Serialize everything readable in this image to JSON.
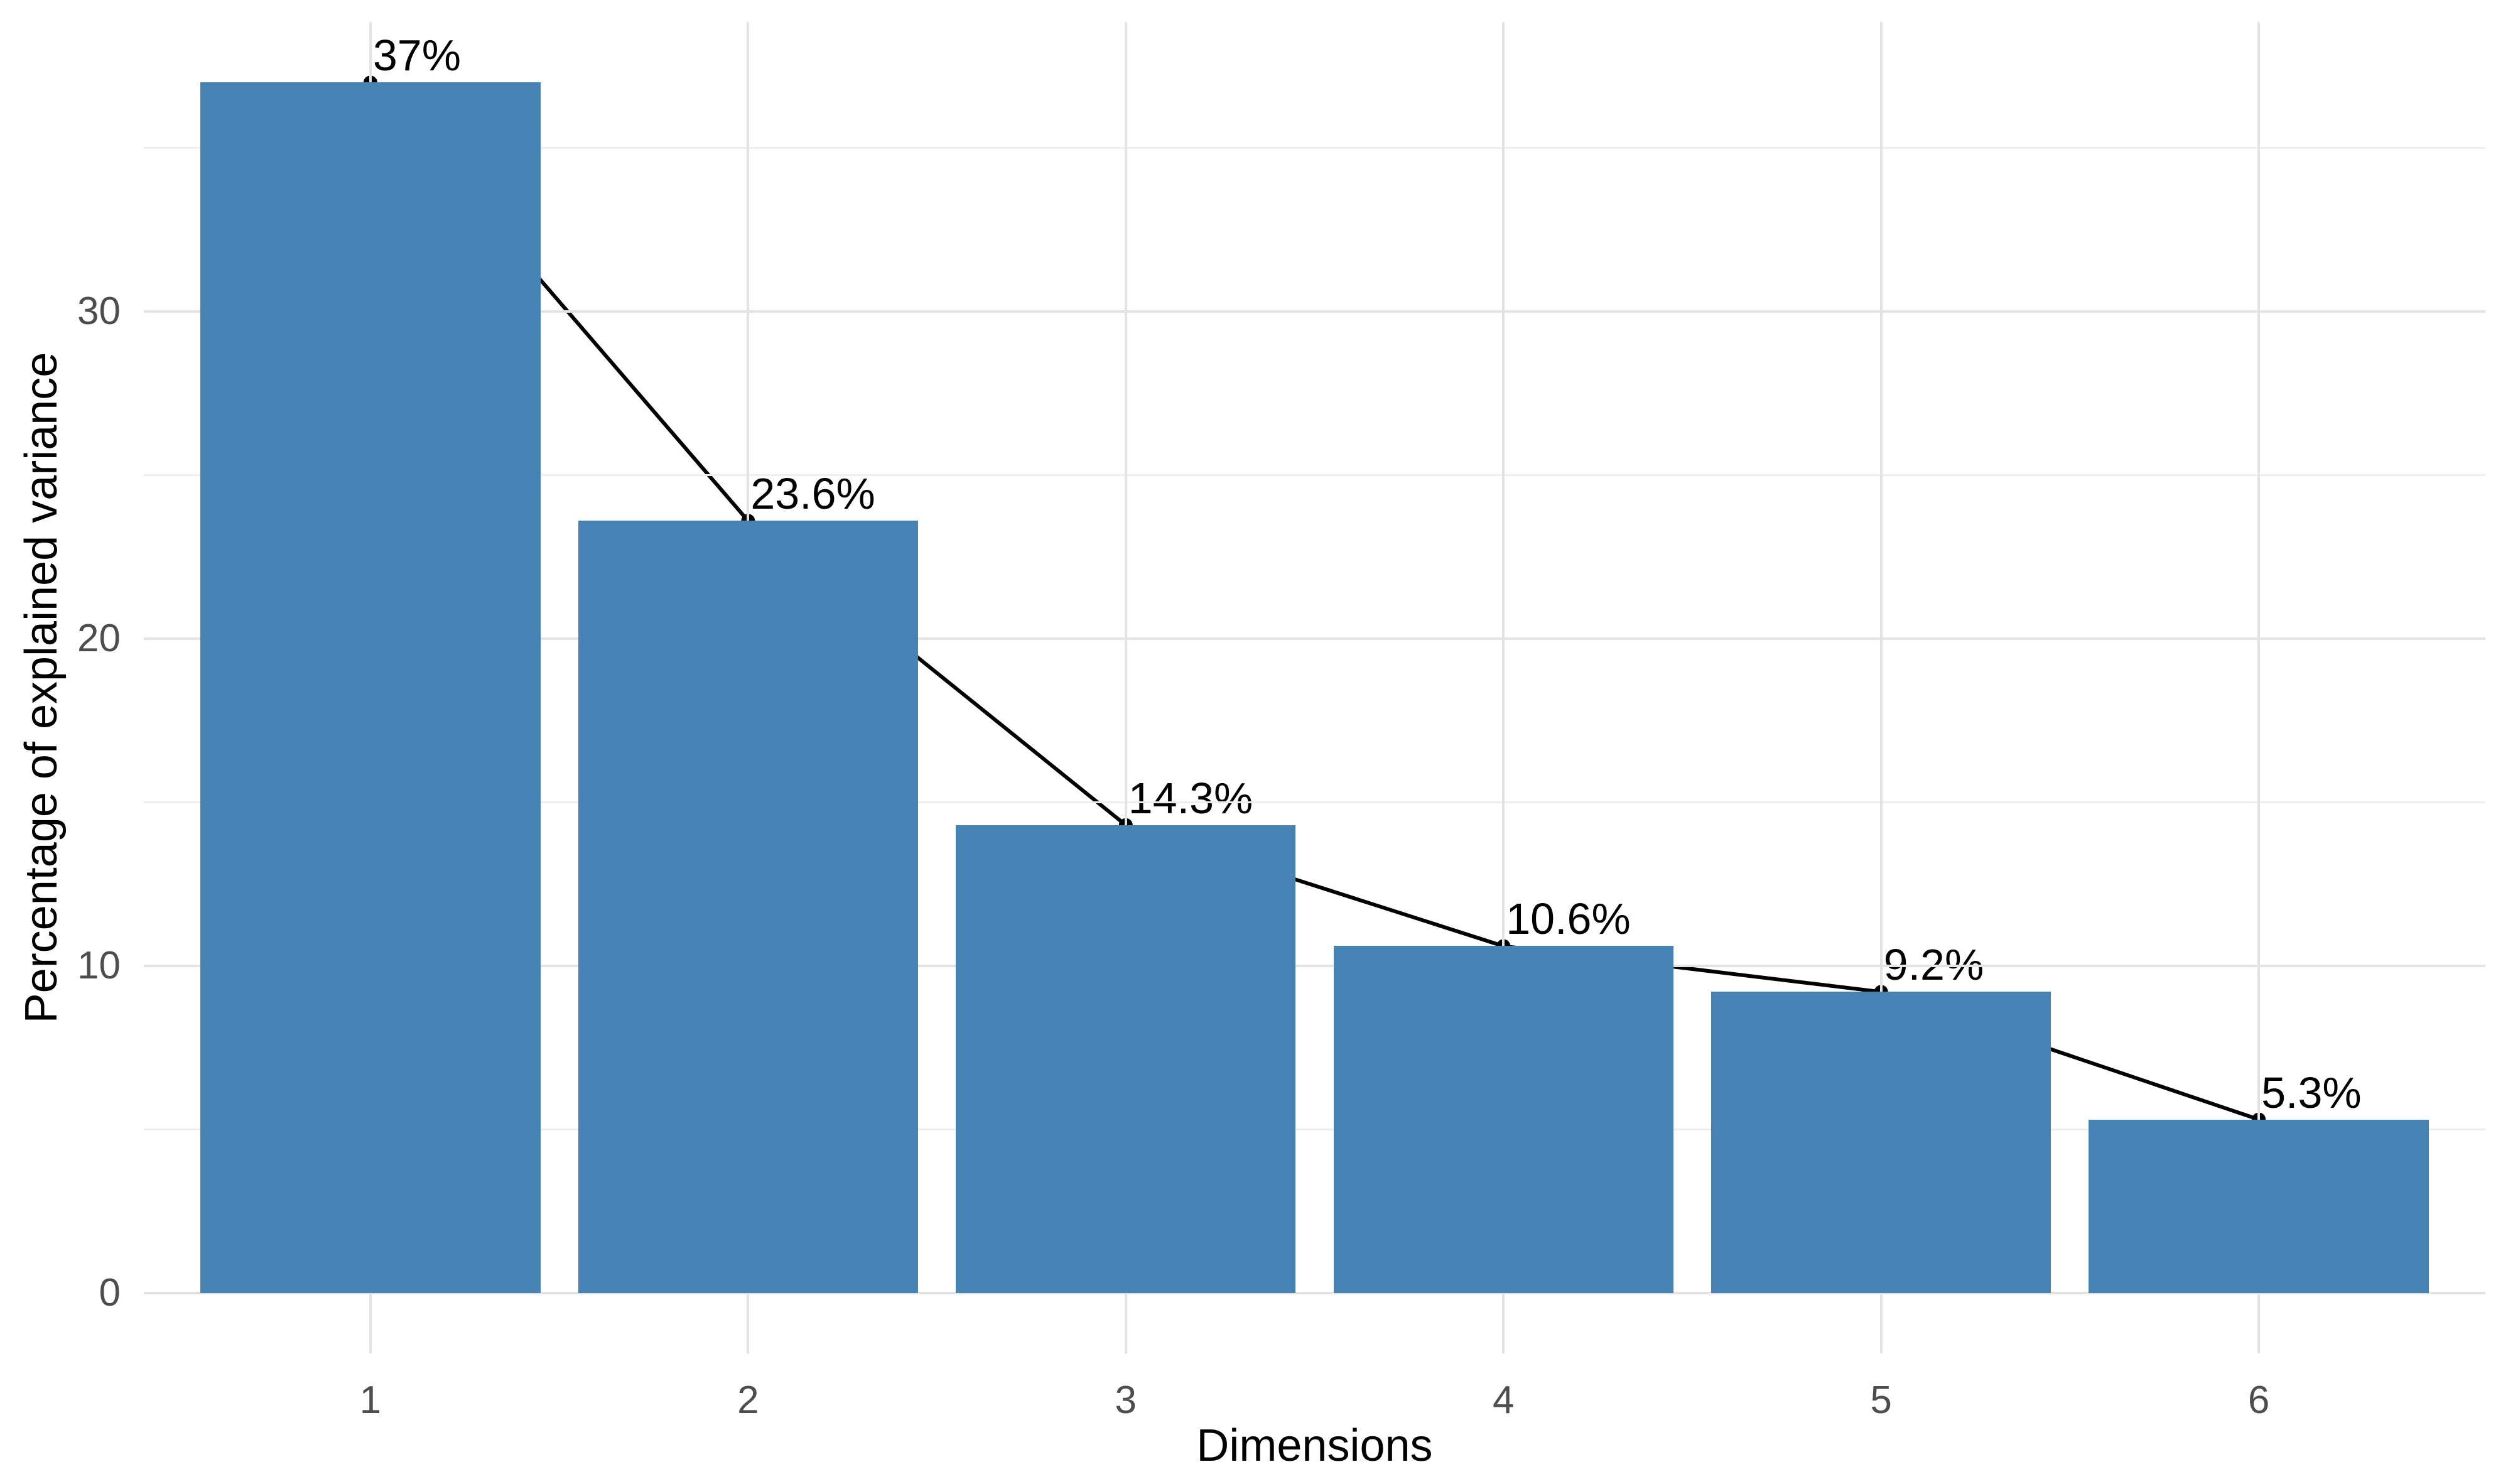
{
  "chart_data": {
    "type": "bar",
    "subtype": "scree_plot_bar_with_line_overlay",
    "title": "",
    "xlabel": "Dimensions",
    "ylabel": "Percentage of explained variance",
    "categories": [
      "1",
      "2",
      "3",
      "4",
      "5",
      "6"
    ],
    "values": [
      37,
      23.6,
      14.3,
      10.6,
      9.2,
      5.3
    ],
    "point_labels": [
      "37%",
      "23.6%",
      "14.3%",
      "10.6%",
      "9.2%",
      "5.3%"
    ],
    "series": [
      {
        "name": "explained-variance-bars",
        "type": "bar",
        "values": [
          37,
          23.6,
          14.3,
          10.6,
          9.2,
          5.3
        ]
      },
      {
        "name": "explained-variance-line",
        "type": "line",
        "values": [
          37,
          23.6,
          14.3,
          10.6,
          9.2,
          5.3
        ]
      }
    ],
    "ylim": [
      0,
      37
    ],
    "y_major_ticks": [
      0,
      10,
      20,
      30
    ],
    "y_tick_labels": [
      "0",
      "10",
      "20",
      "30"
    ],
    "y_minor_gridlines": [
      5,
      15,
      25,
      35
    ],
    "x_gridlines": "major_line_at_each_category",
    "grid": "on",
    "legend": "none",
    "colors": {
      "bar_fill": "#4682B4",
      "line": "#000000",
      "point": "#000000",
      "point_label_text": "#000000",
      "axis_title_text": "#000000",
      "tick_label_text": "#4D4D4D",
      "grid_major": "#E3E3E3",
      "grid_minor": "#EEEEEE",
      "background": "#FFFFFF"
    }
  }
}
